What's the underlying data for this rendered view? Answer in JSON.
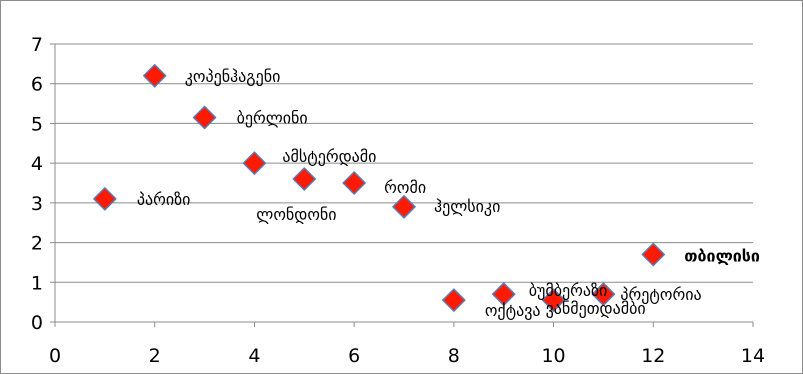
{
  "chart_data": {
    "type": "scatter",
    "title": "",
    "xlabel": "",
    "ylabel": "",
    "xlim": [
      0,
      14
    ],
    "ylim": [
      0,
      7
    ],
    "xticks": [
      0,
      2,
      4,
      6,
      8,
      10,
      12,
      14
    ],
    "yticks": [
      0,
      1,
      2,
      3,
      4,
      5,
      6,
      7
    ],
    "grid": "horizontal",
    "legend": "none",
    "marker": "diamond",
    "marker_color": "#ff1a00",
    "marker_edge_color": "#5b7bb5",
    "points": [
      {
        "label": "პარიზი",
        "x": 1,
        "y": 3.1
      },
      {
        "label": "კოპენჰაგენი",
        "x": 2,
        "y": 6.2
      },
      {
        "label": "ბერლინი",
        "x": 3,
        "y": 5.15
      },
      {
        "label": "ამსტერდამი",
        "x": 4,
        "y": 4.0
      },
      {
        "label": "ლონდონი",
        "x": 5,
        "y": 3.6
      },
      {
        "label": "რომი",
        "x": 6,
        "y": 3.5
      },
      {
        "label": "ჰელსიკი",
        "x": 7,
        "y": 2.9
      },
      {
        "label": "ოქტავა",
        "x": 8,
        "y": 0.55
      },
      {
        "label": "ბუმბერაზი",
        "x": 9,
        "y": 0.7
      },
      {
        "label": "ვანმეთდამბი",
        "x": 10,
        "y": 0.55
      },
      {
        "label": "პრეტორია",
        "x": 11,
        "y": 0.7
      },
      {
        "label": "თბილისი",
        "x": 12,
        "y": 1.7
      }
    ]
  }
}
